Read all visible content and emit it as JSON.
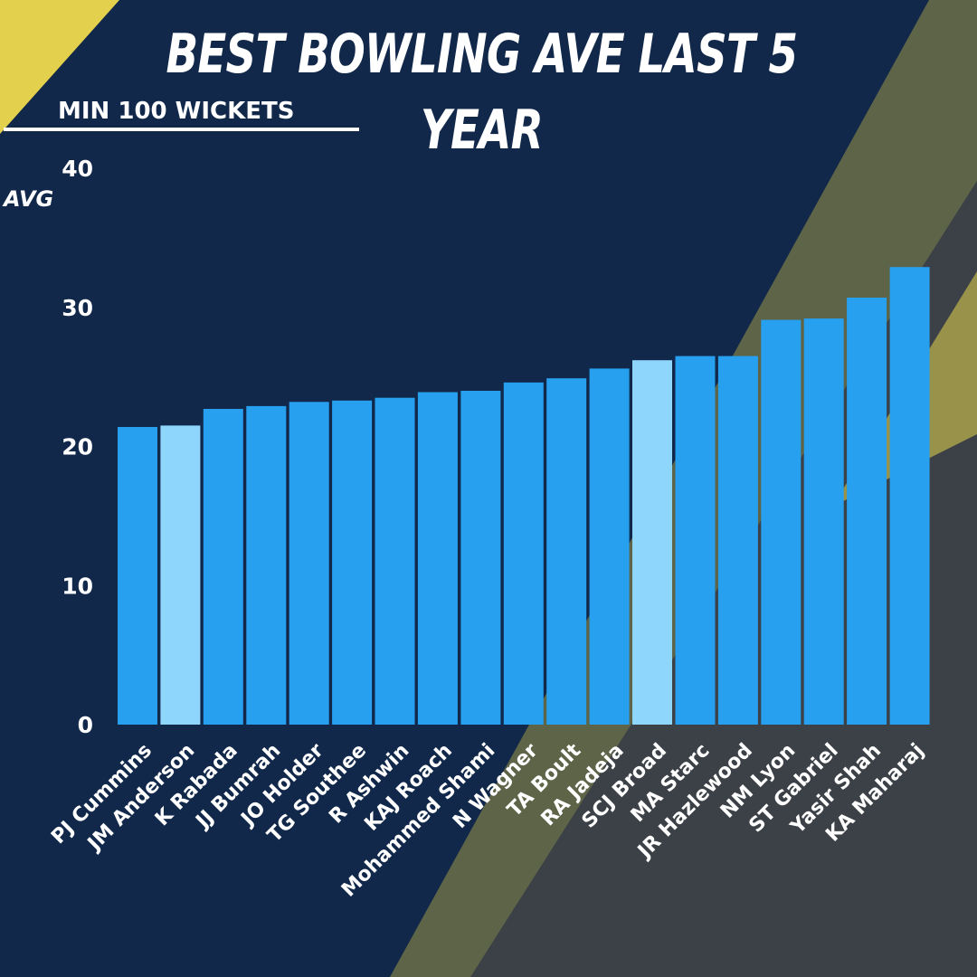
{
  "header": {
    "title": "BEST BOWLING AVE LAST 5 YEAR",
    "subtitle": "MIN 100 WICKETS"
  },
  "colors": {
    "background": "#11284a",
    "bar": "#27a0f0",
    "bar_highlight": "#8fd6fc",
    "accent_gold": "#e3d04d",
    "text": "#ffffff"
  },
  "chart_data": {
    "type": "bar",
    "title": "BEST BOWLING AVE LAST 5 YEAR",
    "subtitle": "MIN 100 WICKETS",
    "xlabel": "",
    "ylabel": "AVG",
    "ylim": [
      0,
      40
    ],
    "yticks": [
      0,
      10,
      20,
      30,
      40
    ],
    "grid": false,
    "categories": [
      "PJ Cummins",
      "JM Anderson",
      "K Rabada",
      "JJ Bumrah",
      "JO Holder",
      "TG Southee",
      "R Ashwin",
      "KAJ Roach",
      "Mohammed Shami",
      "N Wagner",
      "TA Boult",
      "RA Jadeja",
      "SCJ Broad",
      "MA Starc",
      "JR Hazlewood",
      "NM Lyon",
      "ST Gabriel",
      "Yasir Shah",
      "KA Maharaj"
    ],
    "values": [
      21.4,
      21.5,
      22.7,
      22.9,
      23.2,
      23.3,
      23.5,
      23.9,
      24.0,
      24.6,
      24.9,
      25.6,
      26.2,
      26.5,
      26.5,
      29.1,
      29.2,
      30.7,
      32.9
    ],
    "highlighted": [
      "JM Anderson",
      "SCJ Broad"
    ]
  }
}
